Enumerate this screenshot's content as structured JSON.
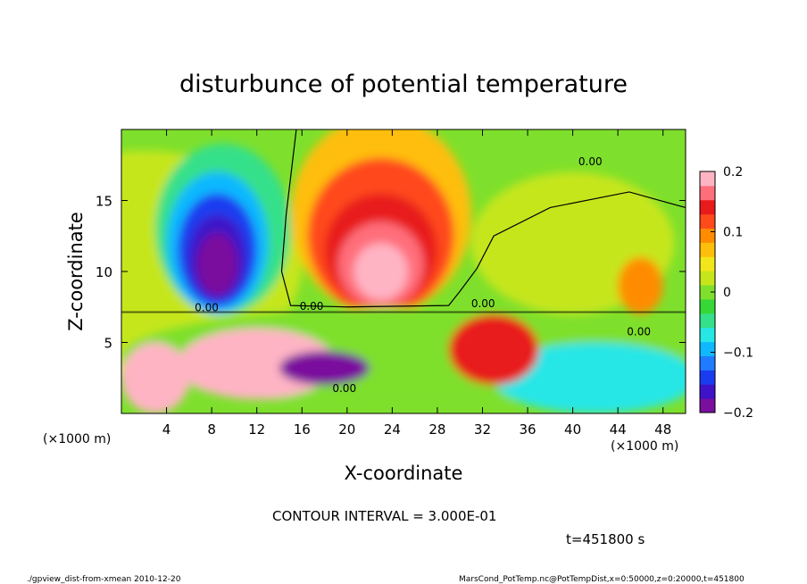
{
  "chart_data": {
    "type": "heatmap",
    "title": "disturbunce of potential temperature",
    "xlabel": "X-coordinate",
    "ylabel": "Z-coordinate",
    "x_unit_left": "(×1000 m)",
    "x_unit_right": "(×1000 m)",
    "xlim": [
      0,
      50
    ],
    "ylim": [
      0,
      20
    ],
    "x_ticks": [
      4,
      8,
      12,
      16,
      20,
      24,
      28,
      32,
      36,
      40,
      44,
      48
    ],
    "y_ticks": [
      5,
      10,
      15
    ],
    "colorbar": {
      "range": [
        -0.2,
        0.2
      ],
      "tick_values": [
        0.2,
        0.1,
        0,
        -0.1,
        -0.2
      ],
      "tick_labels": [
        "0.2",
        "0.1",
        "0",
        "−0.1",
        "−0.2"
      ],
      "colors": [
        "#7a0f9e",
        "#3d12c8",
        "#1a3cf0",
        "#1f7bff",
        "#10b8ff",
        "#26e6e6",
        "#34e08a",
        "#36d836",
        "#7ee02c",
        "#c6e61a",
        "#f2e61a",
        "#ffbe0a",
        "#ff8c00",
        "#ff4a1a",
        "#e81a1a",
        "#ff6e7a",
        "#ffb4c4"
      ]
    },
    "contour_labels": [
      "0.00",
      "0.00",
      "0.00",
      "0.00",
      "0.00",
      "0.00"
    ],
    "time_label": "t=451800 s",
    "contour_interval_text": "CONTOUR INTERVAL = 3.000E-01"
  },
  "footer": {
    "left": "./gpview_dist-from-xmean  2010-12-20",
    "right": "MarsCond_PotTemp.nc@PotTempDist,x=0:50000,z=0:20000,t=451800"
  }
}
